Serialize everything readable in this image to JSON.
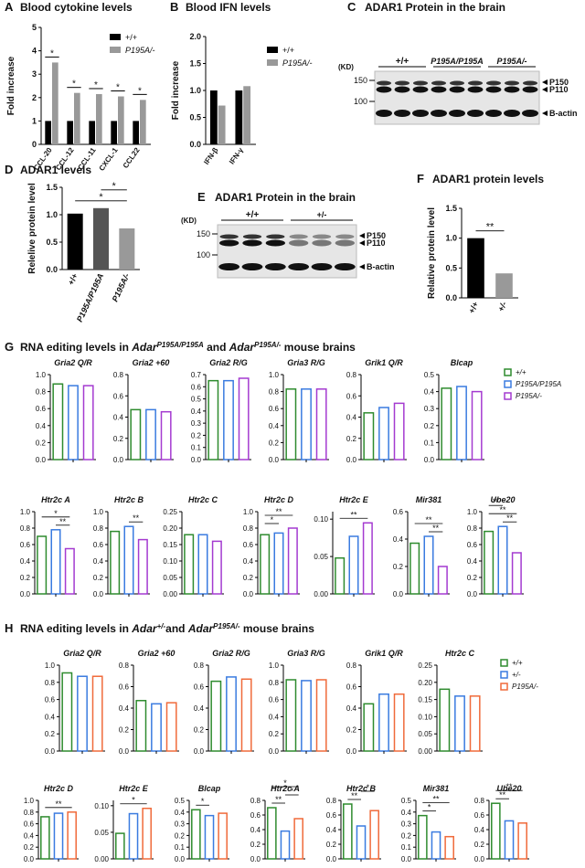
{
  "chart_data": [
    {
      "type": "bar",
      "panel": "A",
      "title": "Blood cytokine levels",
      "ylabel": "Fold increase",
      "categories": [
        "CCL-20",
        "CCL-12",
        "CCL-11",
        "CXCL-1",
        "CCL22"
      ],
      "series": [
        {
          "name": "+/+",
          "color": "#000000",
          "values": [
            1.0,
            1.0,
            1.0,
            1.0,
            1.0
          ]
        },
        {
          "name": "P195A/-",
          "color": "#999999",
          "values": [
            3.5,
            2.2,
            2.15,
            2.05,
            1.9
          ]
        }
      ],
      "annotations": [
        "*",
        "*",
        "*",
        "*",
        "*"
      ],
      "ylim": [
        0,
        5
      ],
      "yticks": [
        0,
        1,
        2,
        3,
        4,
        5
      ]
    },
    {
      "type": "bar",
      "panel": "B",
      "title": "Blood IFN levels",
      "ylabel": "Fold increase",
      "categories": [
        "IFN-β",
        "IFN-γ"
      ],
      "series": [
        {
          "name": "+/+",
          "color": "#000000",
          "values": [
            1.0,
            1.0
          ]
        },
        {
          "name": "P195A/-",
          "color": "#999999",
          "values": [
            0.72,
            1.08
          ]
        }
      ],
      "ylim": [
        0,
        2
      ],
      "yticks": [
        {
          "value": 0,
          "label": "0.0"
        },
        0.5,
        {
          "value": 1,
          "label": "1.0"
        },
        1.5,
        {
          "value": 2,
          "label": "2.0"
        }
      ]
    },
    {
      "type": "bar",
      "panel": "D",
      "title": "ADAR1 levels",
      "ylabel": "Relelive protein level",
      "categories": [
        "+/+",
        "P195A/P195A",
        "P195A/-"
      ],
      "values": [
        1.02,
        1.12,
        0.75
      ],
      "colors": [
        "#000000",
        "#555555",
        "#999999"
      ],
      "annotations": [
        {
          "text": "*",
          "between": [
            "+/+",
            "P195A/-"
          ]
        },
        {
          "text": "*",
          "between": [
            "P195A/P195A",
            "P195A/-"
          ]
        }
      ],
      "ylim": [
        0,
        1.5
      ],
      "yticks": [
        {
          "value": 0,
          "label": "0.0"
        },
        0.5,
        {
          "value": 1,
          "label": "1.0"
        },
        1.5
      ]
    },
    {
      "type": "bar",
      "panel": "F",
      "title": "ADAR1 protein levels",
      "ylabel": "Relative protein level",
      "categories": [
        "+/+",
        "+/-"
      ],
      "values": [
        1.0,
        0.41
      ],
      "colors": [
        "#000000",
        "#999999"
      ],
      "annotations": [
        {
          "text": "**",
          "between": [
            "+/+",
            "+/-"
          ]
        }
      ],
      "ylim": [
        0,
        1.5
      ],
      "yticks": [
        {
          "value": 0,
          "label": "0.0"
        },
        0.5,
        {
          "value": 1,
          "label": "1.0"
        },
        1.5
      ]
    },
    {
      "type": "bar",
      "title": "Gria2 Q/R",
      "values": [
        0.89,
        0.87,
        0.87
      ],
      "colors": [
        "#2e8b2e",
        "#3a7be0",
        "#a43ad0"
      ],
      "ylim": [
        0,
        1
      ],
      "yticks": [
        {
          "value": 0,
          "label": "0.0"
        },
        0.2,
        0.4,
        0.6,
        0.8,
        {
          "value": 1,
          "label": "1.0"
        }
      ]
    },
    {
      "type": "bar",
      "title": "Gria2 +60",
      "values": [
        0.47,
        0.47,
        0.45
      ],
      "colors": [
        "#2e8b2e",
        "#3a7be0",
        "#a43ad0"
      ],
      "ylim": [
        0,
        0.8
      ],
      "yticks": [
        {
          "value": 0,
          "label": "0.0"
        },
        0.2,
        0.4,
        0.6,
        0.8
      ]
    },
    {
      "type": "bar",
      "title": "Gria2 R/G",
      "values": [
        0.65,
        0.65,
        0.67
      ],
      "colors": [
        "#2e8b2e",
        "#3a7be0",
        "#a43ad0"
      ],
      "ylim": [
        0,
        0.7
      ],
      "yticks": [
        {
          "value": 0,
          "label": "0.0"
        },
        0.1,
        0.2,
        0.3,
        0.4,
        0.5,
        0.6,
        0.7
      ]
    },
    {
      "type": "bar",
      "title": "Gria3 R/G",
      "values": [
        0.83,
        0.83,
        0.83
      ],
      "colors": [
        "#2e8b2e",
        "#3a7be0",
        "#a43ad0"
      ],
      "ylim": [
        0,
        1
      ],
      "yticks": [
        {
          "value": 0,
          "label": "0.0"
        },
        0.2,
        0.4,
        0.6,
        0.8,
        {
          "value": 1,
          "label": "1.0"
        }
      ]
    },
    {
      "type": "bar",
      "title": "Grik1 Q/R",
      "values": [
        0.44,
        0.49,
        0.53
      ],
      "colors": [
        "#2e8b2e",
        "#3a7be0",
        "#a43ad0"
      ],
      "ylim": [
        0,
        0.8
      ],
      "yticks": [
        {
          "value": 0,
          "label": "0.0"
        },
        0.2,
        0.4,
        0.6,
        0.8
      ]
    },
    {
      "type": "bar",
      "title": "Blcap",
      "values": [
        0.42,
        0.43,
        0.4
      ],
      "colors": [
        "#2e8b2e",
        "#3a7be0",
        "#a43ad0"
      ],
      "ylim": [
        0,
        0.5
      ],
      "yticks": [
        {
          "value": 0,
          "label": "0.0"
        },
        0.1,
        0.2,
        0.3,
        0.4,
        0.5
      ]
    },
    {
      "type": "bar",
      "title": "Htr2c A",
      "values": [
        0.7,
        0.78,
        0.55
      ],
      "colors": [
        "#2e8b2e",
        "#3a7be0",
        "#a43ad0"
      ],
      "ylim": [
        0,
        1
      ],
      "yticks": [
        {
          "value": 0,
          "label": "0.0"
        },
        0.2,
        0.4,
        0.6,
        0.8,
        {
          "value": 1,
          "label": "1.0"
        }
      ],
      "annotations": [
        {
          "text": "**",
          "between": [
            "P195A/P195A",
            "P195A/-"
          ]
        },
        {
          "text": "*",
          "between": [
            "+/+",
            "P195A/-"
          ]
        }
      ]
    },
    {
      "type": "bar",
      "title": "Htr2c B",
      "values": [
        0.76,
        0.82,
        0.66
      ],
      "colors": [
        "#2e8b2e",
        "#3a7be0",
        "#a43ad0"
      ],
      "ylim": [
        0,
        1
      ],
      "yticks": [
        {
          "value": 0,
          "label": "0.0"
        },
        0.2,
        0.4,
        0.6,
        0.8,
        {
          "value": 1,
          "label": "1.0"
        }
      ],
      "annotations": [
        {
          "text": "**",
          "between": [
            "P195A/P195A",
            "P195A/-"
          ]
        }
      ]
    },
    {
      "type": "bar",
      "title": "Htr2c C",
      "values": [
        0.18,
        0.18,
        0.16
      ],
      "colors": [
        "#2e8b2e",
        "#3a7be0",
        "#a43ad0"
      ],
      "ylim": [
        0,
        0.25
      ],
      "yticks": [
        {
          "value": 0,
          "label": "0.00"
        },
        0.05,
        {
          "value": 0.1,
          "label": "0.10"
        },
        0.15,
        {
          "value": 0.2,
          "label": "0.20"
        },
        0.25
      ]
    },
    {
      "type": "bar",
      "title": "Htr2c D",
      "values": [
        0.72,
        0.74,
        0.8
      ],
      "colors": [
        "#2e8b2e",
        "#3a7be0",
        "#a43ad0"
      ],
      "ylim": [
        0,
        1
      ],
      "yticks": [
        {
          "value": 0,
          "label": "0.0"
        },
        0.2,
        0.4,
        0.6,
        0.8,
        {
          "value": 1,
          "label": "1.0"
        }
      ],
      "annotations": [
        {
          "text": "*",
          "between": [
            "+/+",
            "P195A/P195A"
          ]
        },
        {
          "text": "**",
          "between": [
            "+/+",
            "P195A/-"
          ]
        }
      ]
    },
    {
      "type": "bar",
      "title": "Htr2c E",
      "values": [
        0.048,
        0.077,
        0.095
      ],
      "colors": [
        "#2e8b2e",
        "#3a7be0",
        "#a43ad0"
      ],
      "ylim": [
        0,
        0.11
      ],
      "yticks": [
        {
          "value": 0,
          "label": "0.00"
        },
        0.05,
        {
          "value": 0.1,
          "label": "0.10"
        }
      ],
      "annotations": [
        {
          "text": "**",
          "between": [
            "+/+",
            "P195A/-"
          ]
        }
      ]
    },
    {
      "type": "bar",
      "title": "Mir381",
      "values": [
        0.37,
        0.42,
        0.2
      ],
      "colors": [
        "#2e8b2e",
        "#3a7be0",
        "#a43ad0"
      ],
      "ylim": [
        0,
        0.6
      ],
      "yticks": [
        {
          "value": 0,
          "label": "0.0"
        },
        0.2,
        0.4,
        0.6
      ],
      "annotations": [
        {
          "text": "**",
          "between": [
            "P195A/P195A",
            "P195A/-"
          ]
        },
        {
          "text": "**",
          "between": [
            "+/+",
            "P195A/-"
          ]
        }
      ]
    },
    {
      "type": "bar",
      "title": "Ube20",
      "values": [
        0.76,
        0.82,
        0.5
      ],
      "colors": [
        "#2e8b2e",
        "#3a7be0",
        "#a43ad0"
      ],
      "ylim": [
        0,
        1
      ],
      "yticks": [
        {
          "value": 0,
          "label": "0.0"
        },
        0.2,
        0.4,
        0.6,
        0.8,
        {
          "value": 1,
          "label": "1.0"
        }
      ],
      "annotations": [
        {
          "text": "**",
          "between": [
            "P195A/P195A",
            "P195A/-"
          ]
        },
        {
          "text": "**",
          "between": [
            "+/+",
            "P195A/-"
          ]
        },
        {
          "text": "**",
          "between": [
            "+/+",
            "P195A/P195A"
          ]
        }
      ]
    },
    {
      "type": "bar",
      "title": "Gria2 Q/R",
      "values": [
        0.91,
        0.87,
        0.87
      ],
      "colors": [
        "#2e8b2e",
        "#3a7be0",
        "#f06a3a"
      ],
      "ylim": [
        0,
        1
      ],
      "yticks": [
        {
          "value": 0,
          "label": "0.0"
        },
        0.2,
        0.4,
        0.6,
        0.8,
        {
          "value": 1,
          "label": "1.0"
        }
      ]
    },
    {
      "type": "bar",
      "title": "Gria2 +60",
      "values": [
        0.47,
        0.44,
        0.45
      ],
      "colors": [
        "#2e8b2e",
        "#3a7be0",
        "#f06a3a"
      ],
      "ylim": [
        0,
        0.8
      ],
      "yticks": [
        {
          "value": 0,
          "label": "0.0"
        },
        0.2,
        0.4,
        0.6,
        0.8
      ]
    },
    {
      "type": "bar",
      "title": "Gria2 R/G",
      "values": [
        0.65,
        0.69,
        0.67
      ],
      "colors": [
        "#2e8b2e",
        "#3a7be0",
        "#f06a3a"
      ],
      "ylim": [
        0,
        0.8
      ],
      "yticks": [
        {
          "value": 0,
          "label": "0.0"
        },
        0.2,
        0.4,
        0.6,
        0.8
      ]
    },
    {
      "type": "bar",
      "title": "Gria3 R/G",
      "values": [
        0.83,
        0.82,
        0.83
      ],
      "colors": [
        "#2e8b2e",
        "#3a7be0",
        "#f06a3a"
      ],
      "ylim": [
        0,
        1
      ],
      "yticks": [
        {
          "value": 0,
          "label": "0.0"
        },
        0.2,
        0.4,
        0.6,
        0.8,
        {
          "value": 1,
          "label": "1.0"
        }
      ]
    },
    {
      "type": "bar",
      "title": "Grik1 Q/R",
      "values": [
        0.44,
        0.53,
        0.53
      ],
      "colors": [
        "#2e8b2e",
        "#3a7be0",
        "#f06a3a"
      ],
      "ylim": [
        0,
        0.8
      ],
      "yticks": [
        {
          "value": 0,
          "label": "0.0"
        },
        0.2,
        0.4,
        0.6,
        0.8
      ]
    },
    {
      "type": "bar",
      "title": "Htr2c C",
      "values": [
        0.18,
        0.16,
        0.16
      ],
      "colors": [
        "#2e8b2e",
        "#3a7be0",
        "#f06a3a"
      ],
      "ylim": [
        0,
        0.25
      ],
      "yticks": [
        {
          "value": 0,
          "label": "0.00"
        },
        0.05,
        {
          "value": 0.1,
          "label": "0.10"
        },
        0.15,
        {
          "value": 0.2,
          "label": "0.20"
        },
        0.25
      ]
    },
    {
      "type": "bar",
      "title": "Htr2c D",
      "values": [
        0.72,
        0.78,
        0.8
      ],
      "colors": [
        "#2e8b2e",
        "#3a7be0",
        "#f06a3a"
      ],
      "ylim": [
        0,
        1
      ],
      "yticks": [
        {
          "value": 0,
          "label": "0.0"
        },
        0.2,
        0.4,
        0.6,
        0.8,
        {
          "value": 1,
          "label": "1.0"
        }
      ],
      "annotations": [
        {
          "text": "**",
          "between": [
            "+/+",
            "P195A/-"
          ]
        }
      ]
    },
    {
      "type": "bar",
      "title": "Htr2c E",
      "values": [
        0.048,
        0.085,
        0.095
      ],
      "colors": [
        "#2e8b2e",
        "#3a7be0",
        "#f06a3a"
      ],
      "ylim": [
        0,
        0.11
      ],
      "yticks": [
        {
          "value": 0,
          "label": "0.00"
        },
        0.05,
        {
          "value": 0.1,
          "label": "0.10"
        }
      ],
      "annotations": [
        {
          "text": "*",
          "between": [
            "+/+",
            "P195A/-"
          ]
        }
      ]
    },
    {
      "type": "bar",
      "title": "Blcap",
      "values": [
        0.42,
        0.37,
        0.39
      ],
      "colors": [
        "#2e8b2e",
        "#3a7be0",
        "#f06a3a"
      ],
      "ylim": [
        0,
        0.5
      ],
      "yticks": [
        {
          "value": 0,
          "label": "0.0"
        },
        0.1,
        0.2,
        0.3,
        0.4,
        0.5
      ],
      "annotations": [
        {
          "text": "*",
          "between": [
            "+/+",
            "+/-"
          ]
        }
      ]
    },
    {
      "type": "bar",
      "title": "Htr2c A",
      "values": [
        0.7,
        0.38,
        0.55
      ],
      "colors": [
        "#2e8b2e",
        "#3a7be0",
        "#f06a3a"
      ],
      "ylim": [
        0,
        0.8
      ],
      "yticks": [
        {
          "value": 0,
          "label": "0.0"
        },
        0.2,
        0.4,
        0.6,
        0.8
      ],
      "annotations": [
        {
          "text": "**",
          "between": [
            "+/+",
            "+/-"
          ]
        },
        {
          "text": "*",
          "between": [
            "+/-",
            "P195A/-"
          ]
        },
        {
          "text": "*",
          "between": [
            "+/+",
            "P195A/-"
          ]
        }
      ]
    },
    {
      "type": "bar",
      "title": "Htr2c B",
      "values": [
        0.75,
        0.45,
        0.66
      ],
      "colors": [
        "#2e8b2e",
        "#3a7be0",
        "#f06a3a"
      ],
      "ylim": [
        0,
        0.8
      ],
      "yticks": [
        {
          "value": 0,
          "label": "0.0"
        },
        0.2,
        0.4,
        0.6,
        0.8
      ],
      "annotations": [
        {
          "text": "**",
          "between": [
            "+/+",
            "+/-"
          ]
        },
        {
          "text": "*",
          "between": [
            "+/-",
            "P195A/-"
          ]
        }
      ]
    },
    {
      "type": "bar",
      "title": "Mir381",
      "values": [
        0.37,
        0.23,
        0.19
      ],
      "colors": [
        "#2e8b2e",
        "#3a7be0",
        "#f06a3a"
      ],
      "ylim": [
        0,
        0.5
      ],
      "yticks": [
        {
          "value": 0,
          "label": "0.0"
        },
        0.1,
        0.2,
        0.3,
        0.4,
        0.5
      ],
      "annotations": [
        {
          "text": "*",
          "between": [
            "+/+",
            "+/-"
          ]
        },
        {
          "text": "**",
          "between": [
            "+/+",
            "P195A/-"
          ]
        }
      ]
    },
    {
      "type": "bar",
      "title": "Ube20",
      "values": [
        0.76,
        0.52,
        0.49
      ],
      "colors": [
        "#2e8b2e",
        "#3a7be0",
        "#f06a3a"
      ],
      "ylim": [
        0,
        0.8
      ],
      "yticks": [
        {
          "value": 0,
          "label": "0.0"
        },
        0.2,
        0.4,
        0.6,
        0.8
      ],
      "annotations": [
        {
          "text": "**",
          "between": [
            "+/+",
            "+/-"
          ]
        },
        {
          "text": "**",
          "between": [
            "+/+",
            "P195A/-"
          ]
        }
      ]
    }
  ],
  "blots": [
    {
      "panel": "C",
      "title": "ADAR1 Protein in the brain",
      "unit": "(KD)",
      "markers": [
        "150",
        "100"
      ],
      "groups": [
        "+/+",
        "P195A/P195A",
        "P195A/-"
      ],
      "bands": [
        "P150",
        "P110",
        "B-actin"
      ]
    },
    {
      "panel": "E",
      "title": "ADAR1 Protein in the brain",
      "unit": "(KD)",
      "markers": [
        "150",
        "100"
      ],
      "groups": [
        "+/+",
        "+/-"
      ],
      "bands": [
        "P150",
        "P110",
        "B-actin"
      ]
    }
  ],
  "sections": [
    {
      "panel": "G",
      "title": [
        "RNA editing levels in ",
        "Adar",
        "P195A/P195A",
        " and ",
        "Adar",
        "P195A/-",
        " mouse brains"
      ],
      "legend": [
        {
          "name": "+/+",
          "color": "#2e8b2e"
        },
        {
          "name": "P195A/P195A",
          "color": "#3a7be0"
        },
        {
          "name": "P195A/-",
          "color": "#a43ad0"
        }
      ]
    },
    {
      "panel": "H",
      "title": [
        "RNA editing levels in ",
        "Adar",
        "+/-",
        "and ",
        "Adar",
        "P195A/-",
        " mouse brains"
      ],
      "legend": [
        {
          "name": "+/+",
          "color": "#2e8b2e"
        },
        {
          "name": "+/-",
          "color": "#3a7be0"
        },
        {
          "name": "P195A/-",
          "color": "#f06a3a"
        }
      ]
    }
  ]
}
